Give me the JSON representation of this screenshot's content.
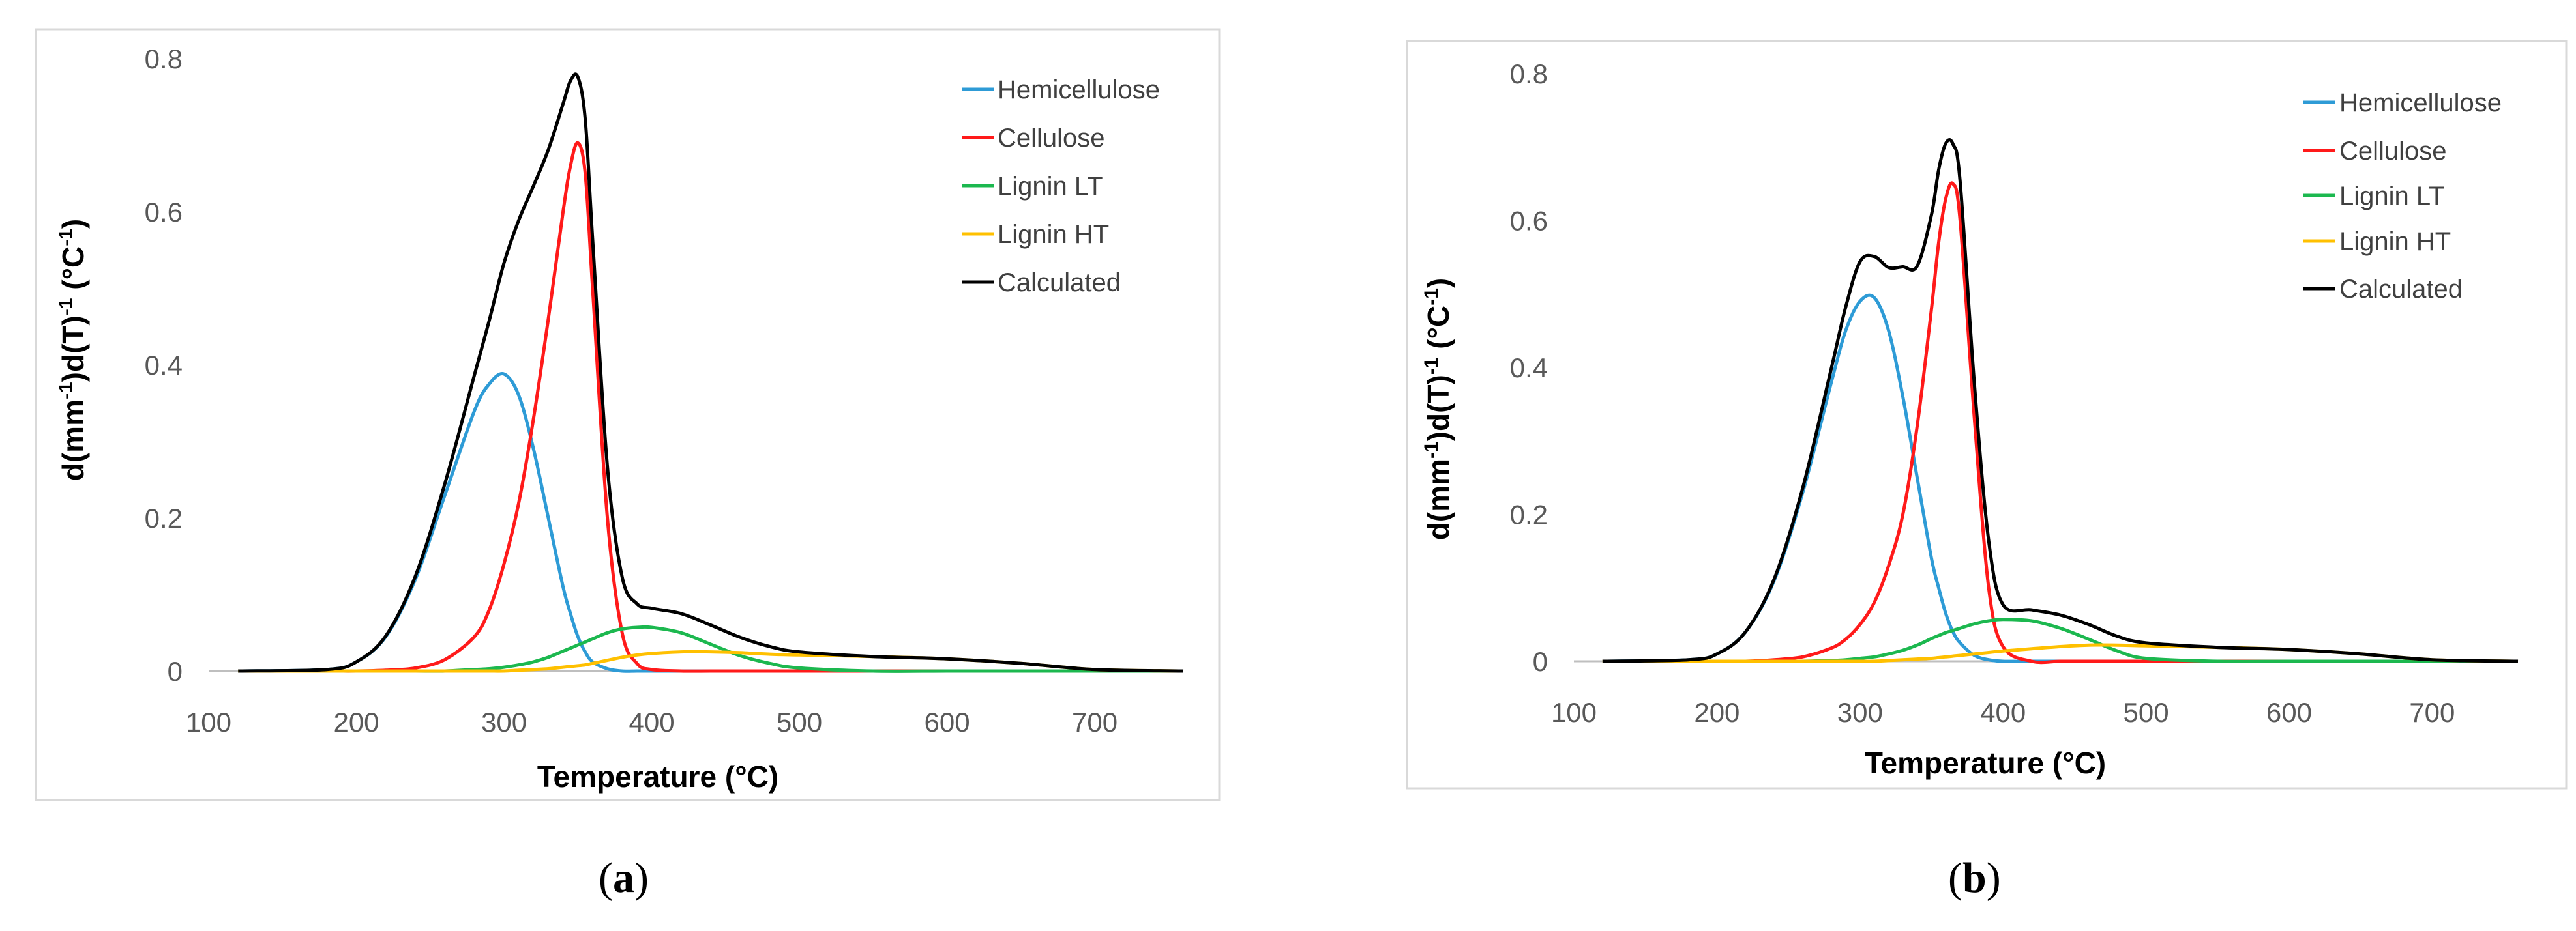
{
  "colors": {
    "hemicellulose": "#2e9bd6",
    "cellulose": "#ff1a1a",
    "lignin_lt": "#1cb84f",
    "lignin_ht": "#ffc000",
    "calculated": "#000000"
  },
  "chart_data": [
    {
      "type": "line",
      "panel_label": "(a)",
      "panel_label_letter": "a",
      "xlabel": "Temperature (°C)",
      "ylabel_parts": {
        "a": "d(mm",
        "b": "-1",
        "c": ")d(T)",
        "d": "-1",
        "e": " (°C",
        "f": "-1",
        "g": ")"
      },
      "xlim": [
        100,
        760
      ],
      "ylim": [
        0,
        0.8
      ],
      "xticks": [
        "100",
        "200",
        "300",
        "400",
        "500",
        "600",
        "700"
      ],
      "yticks": [
        "0",
        "0.2",
        "0.4",
        "0.6",
        "0.8"
      ],
      "grid": false,
      "legend_position": "top-right",
      "x": [
        120,
        180,
        200,
        220,
        240,
        260,
        280,
        290,
        300,
        310,
        320,
        330,
        340,
        345,
        350,
        355,
        360,
        370,
        380,
        390,
        400,
        420,
        440,
        460,
        480,
        500,
        550,
        600,
        650,
        700,
        760
      ],
      "series": [
        {
          "name": "Hemicellulose",
          "color_key": "hemicellulose",
          "values": [
            0,
            0.002,
            0.012,
            0.045,
            0.12,
            0.23,
            0.34,
            0.375,
            0.388,
            0.36,
            0.29,
            0.2,
            0.11,
            0.075,
            0.045,
            0.025,
            0.012,
            0.003,
            0,
            0,
            0,
            0,
            0,
            0,
            0,
            0,
            0,
            0,
            0,
            0,
            0
          ]
        },
        {
          "name": "Cellulose",
          "color_key": "cellulose",
          "values": [
            0,
            0,
            0,
            0.001,
            0.004,
            0.015,
            0.045,
            0.08,
            0.14,
            0.22,
            0.33,
            0.46,
            0.6,
            0.66,
            0.69,
            0.65,
            0.5,
            0.2,
            0.05,
            0.01,
            0.002,
            0,
            0,
            0,
            0,
            0,
            0,
            0,
            0,
            0,
            0
          ]
        },
        {
          "name": "Lignin LT",
          "color_key": "lignin_lt",
          "values": [
            0,
            0,
            0,
            0,
            0,
            0,
            0.002,
            0.003,
            0.005,
            0.008,
            0.012,
            0.018,
            0.026,
            0.03,
            0.034,
            0.038,
            0.042,
            0.05,
            0.055,
            0.057,
            0.057,
            0.05,
            0.035,
            0.02,
            0.01,
            0.004,
            0,
            0,
            0,
            0,
            0
          ]
        },
        {
          "name": "Lignin HT",
          "color_key": "lignin_ht",
          "values": [
            0,
            0,
            0,
            0,
            0,
            0,
            0,
            0,
            0,
            0.001,
            0.002,
            0.003,
            0.005,
            0.006,
            0.007,
            0.008,
            0.01,
            0.014,
            0.018,
            0.021,
            0.023,
            0.025,
            0.025,
            0.024,
            0.022,
            0.021,
            0.019,
            0.016,
            0.01,
            0.002,
            0
          ]
        },
        {
          "name": "Calculated",
          "color_key": "calculated",
          "values": [
            0,
            0.002,
            0.012,
            0.046,
            0.124,
            0.245,
            0.387,
            0.458,
            0.533,
            0.589,
            0.634,
            0.681,
            0.741,
            0.771,
            0.776,
            0.721,
            0.564,
            0.267,
            0.123,
            0.088,
            0.082,
            0.075,
            0.06,
            0.044,
            0.032,
            0.025,
            0.019,
            0.016,
            0.01,
            0.002,
            0
          ]
        }
      ]
    },
    {
      "type": "line",
      "panel_label": "(b)",
      "panel_label_letter": "b",
      "xlabel": "Temperature (°C)",
      "ylabel_parts": {
        "a": "d(mm",
        "b": "-1",
        "c": ")d(T)",
        "d": "-1",
        "e": " (°C",
        "f": "-1",
        "g": ")"
      },
      "xlim": [
        100,
        760
      ],
      "ylim": [
        0,
        0.8
      ],
      "xticks": [
        "100",
        "200",
        "300",
        "400",
        "500",
        "600",
        "700"
      ],
      "yticks": [
        "0",
        "0.2",
        "0.4",
        "0.6",
        "0.8"
      ],
      "grid": false,
      "legend_position": "top-right",
      "x": [
        120,
        180,
        200,
        220,
        240,
        260,
        280,
        290,
        300,
        310,
        320,
        330,
        340,
        350,
        355,
        360,
        365,
        370,
        380,
        390,
        400,
        420,
        440,
        460,
        480,
        500,
        550,
        600,
        650,
        700,
        760
      ],
      "series": [
        {
          "name": "Hemicellulose",
          "color_key": "hemicellulose",
          "values": [
            0,
            0.002,
            0.01,
            0.04,
            0.11,
            0.23,
            0.38,
            0.45,
            0.49,
            0.495,
            0.45,
            0.36,
            0.25,
            0.14,
            0.1,
            0.065,
            0.04,
            0.025,
            0.008,
            0.002,
            0,
            0,
            0,
            0,
            0,
            0,
            0,
            0,
            0,
            0,
            0
          ]
        },
        {
          "name": "Cellulose",
          "color_key": "cellulose",
          "values": [
            0,
            0,
            0,
            0,
            0.002,
            0.006,
            0.018,
            0.03,
            0.05,
            0.08,
            0.13,
            0.2,
            0.32,
            0.48,
            0.57,
            0.63,
            0.65,
            0.6,
            0.33,
            0.1,
            0.02,
            0,
            0,
            0,
            0,
            0,
            0,
            0,
            0,
            0,
            0
          ]
        },
        {
          "name": "Lignin LT",
          "color_key": "lignin_lt",
          "values": [
            0,
            0,
            0,
            0,
            0,
            0,
            0.001,
            0.002,
            0.004,
            0.006,
            0.01,
            0.015,
            0.022,
            0.031,
            0.035,
            0.039,
            0.042,
            0.045,
            0.051,
            0.055,
            0.057,
            0.055,
            0.045,
            0.03,
            0.014,
            0.004,
            0,
            0,
            0,
            0,
            0
          ]
        },
        {
          "name": "Lignin HT",
          "color_key": "lignin_ht",
          "values": [
            0,
            0,
            0,
            0,
            0,
            0,
            0,
            0,
            0,
            0,
            0.001,
            0.002,
            0.003,
            0.004,
            0.005,
            0.006,
            0.007,
            0.008,
            0.01,
            0.012,
            0.014,
            0.017,
            0.02,
            0.022,
            0.022,
            0.021,
            0.019,
            0.016,
            0.01,
            0.002,
            0
          ]
        },
        {
          "name": "Calculated",
          "color_key": "calculated",
          "values": [
            0,
            0.002,
            0.01,
            0.04,
            0.112,
            0.236,
            0.399,
            0.482,
            0.544,
            0.551,
            0.536,
            0.537,
            0.538,
            0.608,
            0.669,
            0.705,
            0.704,
            0.653,
            0.377,
            0.164,
            0.077,
            0.07,
            0.063,
            0.05,
            0.034,
            0.025,
            0.019,
            0.016,
            0.01,
            0.002,
            0
          ]
        }
      ]
    }
  ]
}
